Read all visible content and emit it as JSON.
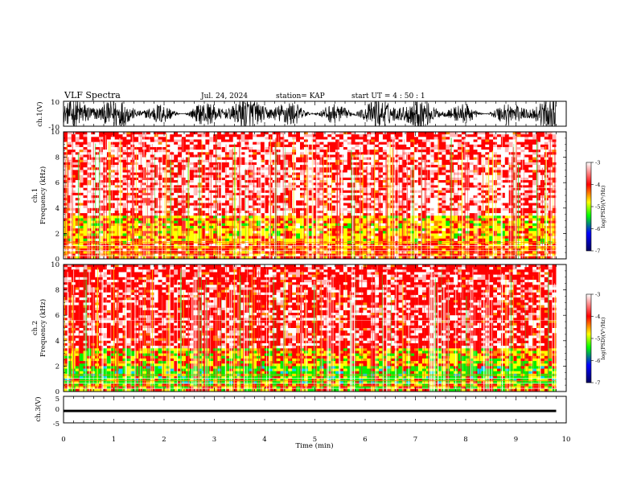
{
  "header": {
    "title": "VLF Spectra",
    "date": "Jul. 24, 2024",
    "station": "station= KAP",
    "start": "start  UT =  4 : 50 : 1"
  },
  "chart_data": [
    {
      "type": "line",
      "name": "ch1-waveform",
      "ylabel": "ch.1(V)",
      "ylim": [
        -10,
        10
      ],
      "yticks": [
        "10",
        "-10"
      ],
      "xlim": [
        0,
        10
      ],
      "description_units": "V"
    },
    {
      "type": "heatmap",
      "name": "ch1-spectrogram",
      "ylabel": "ch.1 Frequency (kHz)",
      "ylabel_line1": "ch.1",
      "ylabel_line2": "Frequency (kHz)",
      "ylim": [
        0,
        10
      ],
      "yticks": [
        "0",
        "2",
        "4",
        "6",
        "8",
        "10"
      ],
      "xlim": [
        0,
        9.8
      ],
      "colorbar": {
        "label": "log(PSD)(V²/Hz)",
        "range": [
          -7,
          -3
        ],
        "ticks": [
          "-3",
          "-4",
          "-5",
          "-6",
          "-7"
        ]
      }
    },
    {
      "type": "heatmap",
      "name": "ch2-spectrogram",
      "ylabel": "ch.2 Frequency (kHz)",
      "ylabel_line1": "ch.2",
      "ylabel_line2": "Frequency (kHz)",
      "ylim": [
        0,
        10
      ],
      "yticks": [
        "0",
        "2",
        "4",
        "6",
        "8",
        "10"
      ],
      "xlim": [
        0,
        9.8
      ],
      "colorbar": {
        "label": "log(PSD)(V²/Hz)",
        "range": [
          -7,
          -3
        ],
        "ticks": [
          "-3",
          "-4",
          "-5",
          "-6",
          "-7"
        ]
      }
    },
    {
      "type": "line",
      "name": "ch3-waveform",
      "ylabel": "ch.3(V)",
      "ylim": [
        -5,
        5
      ],
      "yticks": [
        "5",
        "0",
        "-5"
      ],
      "xlim": [
        0,
        10
      ],
      "level": -0.5
    }
  ],
  "xaxis": {
    "label": "Time (min)",
    "ticks": [
      "0",
      "1",
      "2",
      "3",
      "4",
      "5",
      "6",
      "7",
      "8",
      "9",
      "10"
    ],
    "range": [
      0,
      10
    ]
  },
  "colors": {
    "hot": "#ff0000",
    "mid": "#ffff00",
    "cool": "#00ff00",
    "cold": "#0000ff",
    "floor": "#000080"
  }
}
